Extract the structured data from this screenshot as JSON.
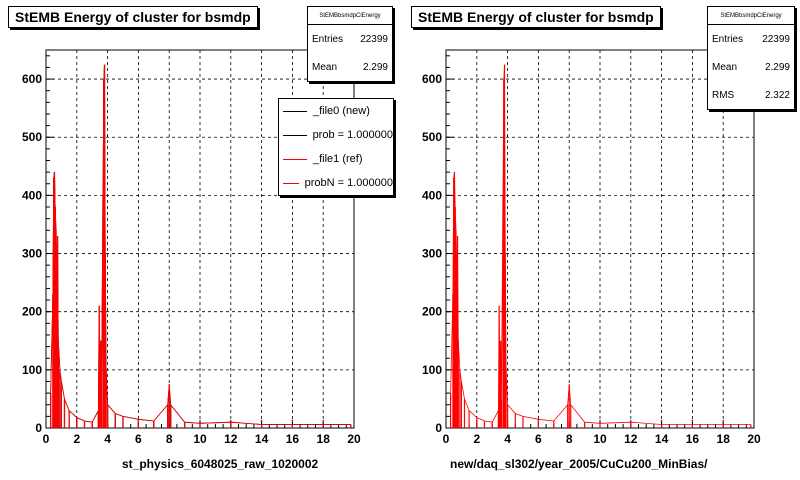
{
  "colors": {
    "primary": "#ff0000",
    "reference": "#000000",
    "grid": "#000000"
  },
  "panels": [
    {
      "title": "StEMB Energy of cluster for bsmdp",
      "stats": {
        "title": "StEMBbsmdpClEnergy",
        "rows": [
          {
            "label": "Entries",
            "value": "22399"
          },
          {
            "label": "Mean",
            "value": "2.299"
          }
        ]
      },
      "legend": [
        {
          "label": "_file0 (new)",
          "color": "#000000"
        },
        {
          "label": "prob = 1.000000",
          "color": "#000000"
        },
        {
          "label": "_file1 (ref)",
          "color": "#ff0000"
        },
        {
          "label": "probN = 1.000000",
          "color": "#ff0000"
        }
      ],
      "xlabel": "st_physics_6048025_raw_1020002"
    },
    {
      "title": "StEMB Energy of cluster for bsmdp",
      "stats": {
        "title": "StEMBbsmdpClEnergy",
        "rows": [
          {
            "label": "Entries",
            "value": "22399"
          },
          {
            "label": "Mean",
            "value": "2.299"
          },
          {
            "label": "RMS",
            "value": "2.322"
          }
        ]
      },
      "legend": [],
      "xlabel": "new/daq_sl302/year_2005/CuCu200_MinBias/"
    }
  ],
  "chart_data": [
    {
      "type": "bar",
      "title": "StEMB Energy of cluster for bsmdp",
      "xlabel": "st_physics_6048025_raw_1020002",
      "ylabel": "",
      "xlim": [
        0,
        20
      ],
      "ylim": [
        0,
        650
      ],
      "grid": true,
      "legend_placement": "top-right",
      "x_ticks": [
        "0",
        "2",
        "4",
        "6",
        "8",
        "10",
        "12",
        "14",
        "16",
        "18",
        "20"
      ],
      "y_ticks": [
        "0",
        "100",
        "200",
        "300",
        "400",
        "500",
        "600"
      ],
      "series": [
        {
          "name": "_file0 (new)",
          "color": "#000000",
          "points": [
            [
              0.3,
              60
            ],
            [
              0.45,
              230
            ],
            [
              0.5,
              430
            ],
            [
              0.55,
              440
            ],
            [
              0.6,
              380
            ],
            [
              0.65,
              340
            ],
            [
              0.7,
              250
            ],
            [
              0.75,
              330
            ],
            [
              0.8,
              150
            ],
            [
              0.9,
              100
            ],
            [
              1.0,
              80
            ],
            [
              1.2,
              50
            ],
            [
              1.5,
              30
            ],
            [
              2.0,
              18
            ],
            [
              2.5,
              12
            ],
            [
              3.0,
              10
            ],
            [
              3.4,
              30
            ],
            [
              3.45,
              210
            ],
            [
              3.5,
              100
            ],
            [
              3.55,
              150
            ],
            [
              3.6,
              50
            ],
            [
              3.7,
              400
            ],
            [
              3.75,
              600
            ],
            [
              3.8,
              625
            ],
            [
              3.85,
              300
            ],
            [
              3.9,
              100
            ],
            [
              4.0,
              40
            ],
            [
              4.5,
              25
            ],
            [
              5.0,
              20
            ],
            [
              6.0,
              15
            ],
            [
              7.0,
              12
            ],
            [
              7.9,
              40
            ],
            [
              8.0,
              75
            ],
            [
              8.1,
              40
            ],
            [
              9.0,
              10
            ],
            [
              10.0,
              8
            ],
            [
              12.0,
              10
            ],
            [
              14.0,
              6
            ],
            [
              16.0,
              6
            ],
            [
              18.0,
              6
            ],
            [
              19.8,
              6
            ]
          ]
        },
        {
          "name": "_file1 (ref)",
          "color": "#ff0000",
          "points": [
            [
              0.3,
              60
            ],
            [
              0.45,
              230
            ],
            [
              0.5,
              430
            ],
            [
              0.55,
              440
            ],
            [
              0.6,
              380
            ],
            [
              0.65,
              340
            ],
            [
              0.7,
              250
            ],
            [
              0.75,
              330
            ],
            [
              0.8,
              150
            ],
            [
              0.9,
              100
            ],
            [
              1.0,
              80
            ],
            [
              1.2,
              50
            ],
            [
              1.5,
              30
            ],
            [
              2.0,
              18
            ],
            [
              2.5,
              12
            ],
            [
              3.0,
              10
            ],
            [
              3.4,
              30
            ],
            [
              3.45,
              210
            ],
            [
              3.5,
              100
            ],
            [
              3.55,
              150
            ],
            [
              3.6,
              50
            ],
            [
              3.7,
              400
            ],
            [
              3.75,
              600
            ],
            [
              3.8,
              625
            ],
            [
              3.85,
              300
            ],
            [
              3.9,
              100
            ],
            [
              4.0,
              40
            ],
            [
              4.5,
              25
            ],
            [
              5.0,
              20
            ],
            [
              6.0,
              15
            ],
            [
              7.0,
              12
            ],
            [
              7.9,
              40
            ],
            [
              8.0,
              75
            ],
            [
              8.1,
              40
            ],
            [
              9.0,
              10
            ],
            [
              10.0,
              8
            ],
            [
              12.0,
              10
            ],
            [
              14.0,
              6
            ],
            [
              16.0,
              6
            ],
            [
              18.0,
              6
            ],
            [
              19.8,
              6
            ]
          ]
        }
      ]
    },
    {
      "type": "bar",
      "title": "StEMB Energy of cluster for bsmdp",
      "xlabel": "new/daq_sl302/year_2005/CuCu200_MinBias/",
      "ylabel": "",
      "xlim": [
        0,
        20
      ],
      "ylim": [
        0,
        650
      ],
      "grid": true,
      "x_ticks": [
        "0",
        "2",
        "4",
        "6",
        "8",
        "10",
        "12",
        "14",
        "16",
        "18",
        "20"
      ],
      "y_ticks": [
        "0",
        "100",
        "200",
        "300",
        "400",
        "500",
        "600"
      ],
      "series": [
        {
          "name": "",
          "color": "#ff0000",
          "points": [
            [
              0.3,
              60
            ],
            [
              0.45,
              230
            ],
            [
              0.5,
              430
            ],
            [
              0.55,
              440
            ],
            [
              0.6,
              380
            ],
            [
              0.65,
              340
            ],
            [
              0.7,
              250
            ],
            [
              0.75,
              330
            ],
            [
              0.8,
              150
            ],
            [
              0.9,
              100
            ],
            [
              1.0,
              80
            ],
            [
              1.2,
              50
            ],
            [
              1.5,
              30
            ],
            [
              2.0,
              18
            ],
            [
              2.5,
              12
            ],
            [
              3.0,
              10
            ],
            [
              3.4,
              30
            ],
            [
              3.45,
              210
            ],
            [
              3.5,
              100
            ],
            [
              3.55,
              150
            ],
            [
              3.6,
              50
            ],
            [
              3.7,
              400
            ],
            [
              3.75,
              600
            ],
            [
              3.8,
              625
            ],
            [
              3.85,
              300
            ],
            [
              3.9,
              100
            ],
            [
              4.0,
              40
            ],
            [
              4.5,
              25
            ],
            [
              5.0,
              20
            ],
            [
              6.0,
              15
            ],
            [
              7.0,
              12
            ],
            [
              7.9,
              40
            ],
            [
              8.0,
              75
            ],
            [
              8.1,
              40
            ],
            [
              9.0,
              10
            ],
            [
              10.0,
              8
            ],
            [
              12.0,
              10
            ],
            [
              14.0,
              6
            ],
            [
              16.0,
              6
            ],
            [
              18.0,
              6
            ],
            [
              19.8,
              6
            ]
          ]
        }
      ]
    }
  ]
}
